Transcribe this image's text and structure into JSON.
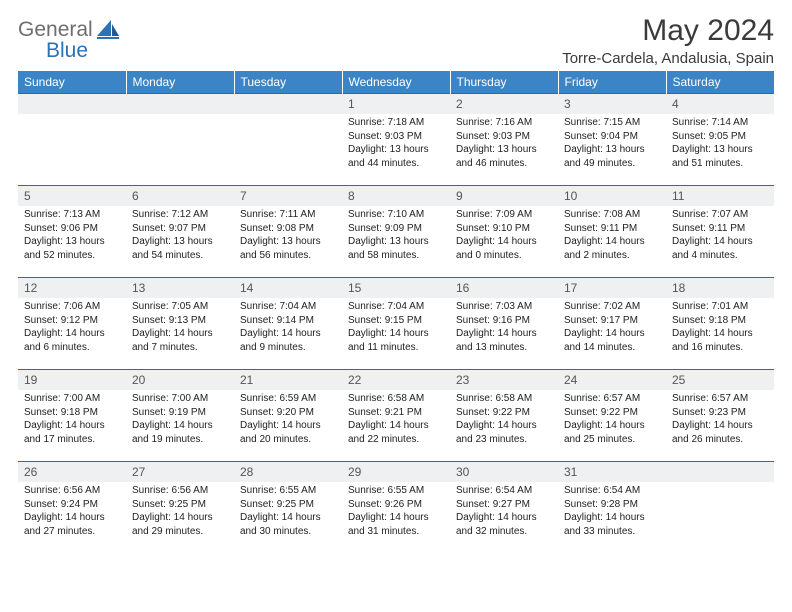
{
  "brand": {
    "general": "General",
    "blue": "Blue"
  },
  "title": "May 2024",
  "location": "Torre-Cardela, Andalusia, Spain",
  "colors": {
    "header_bg": "#3b85c6",
    "header_text": "#ffffff",
    "row_border": "#2b6aa8",
    "daynum_bg": "#eef0f2",
    "text": "#222222",
    "logo_gray": "#6e6e6e",
    "logo_blue": "#2b72b8"
  },
  "weekdays": [
    "Sunday",
    "Monday",
    "Tuesday",
    "Wednesday",
    "Thursday",
    "Friday",
    "Saturday"
  ],
  "weeks": [
    [
      null,
      null,
      null,
      {
        "n": "1",
        "sr": "7:18 AM",
        "ss": "9:03 PM",
        "dl": "13 hours and 44 minutes."
      },
      {
        "n": "2",
        "sr": "7:16 AM",
        "ss": "9:03 PM",
        "dl": "13 hours and 46 minutes."
      },
      {
        "n": "3",
        "sr": "7:15 AM",
        "ss": "9:04 PM",
        "dl": "13 hours and 49 minutes."
      },
      {
        "n": "4",
        "sr": "7:14 AM",
        "ss": "9:05 PM",
        "dl": "13 hours and 51 minutes."
      }
    ],
    [
      {
        "n": "5",
        "sr": "7:13 AM",
        "ss": "9:06 PM",
        "dl": "13 hours and 52 minutes."
      },
      {
        "n": "6",
        "sr": "7:12 AM",
        "ss": "9:07 PM",
        "dl": "13 hours and 54 minutes."
      },
      {
        "n": "7",
        "sr": "7:11 AM",
        "ss": "9:08 PM",
        "dl": "13 hours and 56 minutes."
      },
      {
        "n": "8",
        "sr": "7:10 AM",
        "ss": "9:09 PM",
        "dl": "13 hours and 58 minutes."
      },
      {
        "n": "9",
        "sr": "7:09 AM",
        "ss": "9:10 PM",
        "dl": "14 hours and 0 minutes."
      },
      {
        "n": "10",
        "sr": "7:08 AM",
        "ss": "9:11 PM",
        "dl": "14 hours and 2 minutes."
      },
      {
        "n": "11",
        "sr": "7:07 AM",
        "ss": "9:11 PM",
        "dl": "14 hours and 4 minutes."
      }
    ],
    [
      {
        "n": "12",
        "sr": "7:06 AM",
        "ss": "9:12 PM",
        "dl": "14 hours and 6 minutes."
      },
      {
        "n": "13",
        "sr": "7:05 AM",
        "ss": "9:13 PM",
        "dl": "14 hours and 7 minutes."
      },
      {
        "n": "14",
        "sr": "7:04 AM",
        "ss": "9:14 PM",
        "dl": "14 hours and 9 minutes."
      },
      {
        "n": "15",
        "sr": "7:04 AM",
        "ss": "9:15 PM",
        "dl": "14 hours and 11 minutes."
      },
      {
        "n": "16",
        "sr": "7:03 AM",
        "ss": "9:16 PM",
        "dl": "14 hours and 13 minutes."
      },
      {
        "n": "17",
        "sr": "7:02 AM",
        "ss": "9:17 PM",
        "dl": "14 hours and 14 minutes."
      },
      {
        "n": "18",
        "sr": "7:01 AM",
        "ss": "9:18 PM",
        "dl": "14 hours and 16 minutes."
      }
    ],
    [
      {
        "n": "19",
        "sr": "7:00 AM",
        "ss": "9:18 PM",
        "dl": "14 hours and 17 minutes."
      },
      {
        "n": "20",
        "sr": "7:00 AM",
        "ss": "9:19 PM",
        "dl": "14 hours and 19 minutes."
      },
      {
        "n": "21",
        "sr": "6:59 AM",
        "ss": "9:20 PM",
        "dl": "14 hours and 20 minutes."
      },
      {
        "n": "22",
        "sr": "6:58 AM",
        "ss": "9:21 PM",
        "dl": "14 hours and 22 minutes."
      },
      {
        "n": "23",
        "sr": "6:58 AM",
        "ss": "9:22 PM",
        "dl": "14 hours and 23 minutes."
      },
      {
        "n": "24",
        "sr": "6:57 AM",
        "ss": "9:22 PM",
        "dl": "14 hours and 25 minutes."
      },
      {
        "n": "25",
        "sr": "6:57 AM",
        "ss": "9:23 PM",
        "dl": "14 hours and 26 minutes."
      }
    ],
    [
      {
        "n": "26",
        "sr": "6:56 AM",
        "ss": "9:24 PM",
        "dl": "14 hours and 27 minutes."
      },
      {
        "n": "27",
        "sr": "6:56 AM",
        "ss": "9:25 PM",
        "dl": "14 hours and 29 minutes."
      },
      {
        "n": "28",
        "sr": "6:55 AM",
        "ss": "9:25 PM",
        "dl": "14 hours and 30 minutes."
      },
      {
        "n": "29",
        "sr": "6:55 AM",
        "ss": "9:26 PM",
        "dl": "14 hours and 31 minutes."
      },
      {
        "n": "30",
        "sr": "6:54 AM",
        "ss": "9:27 PM",
        "dl": "14 hours and 32 minutes."
      },
      {
        "n": "31",
        "sr": "6:54 AM",
        "ss": "9:28 PM",
        "dl": "14 hours and 33 minutes."
      },
      null
    ]
  ],
  "labels": {
    "sunrise": "Sunrise: ",
    "sunset": "Sunset: ",
    "daylight": "Daylight: "
  }
}
